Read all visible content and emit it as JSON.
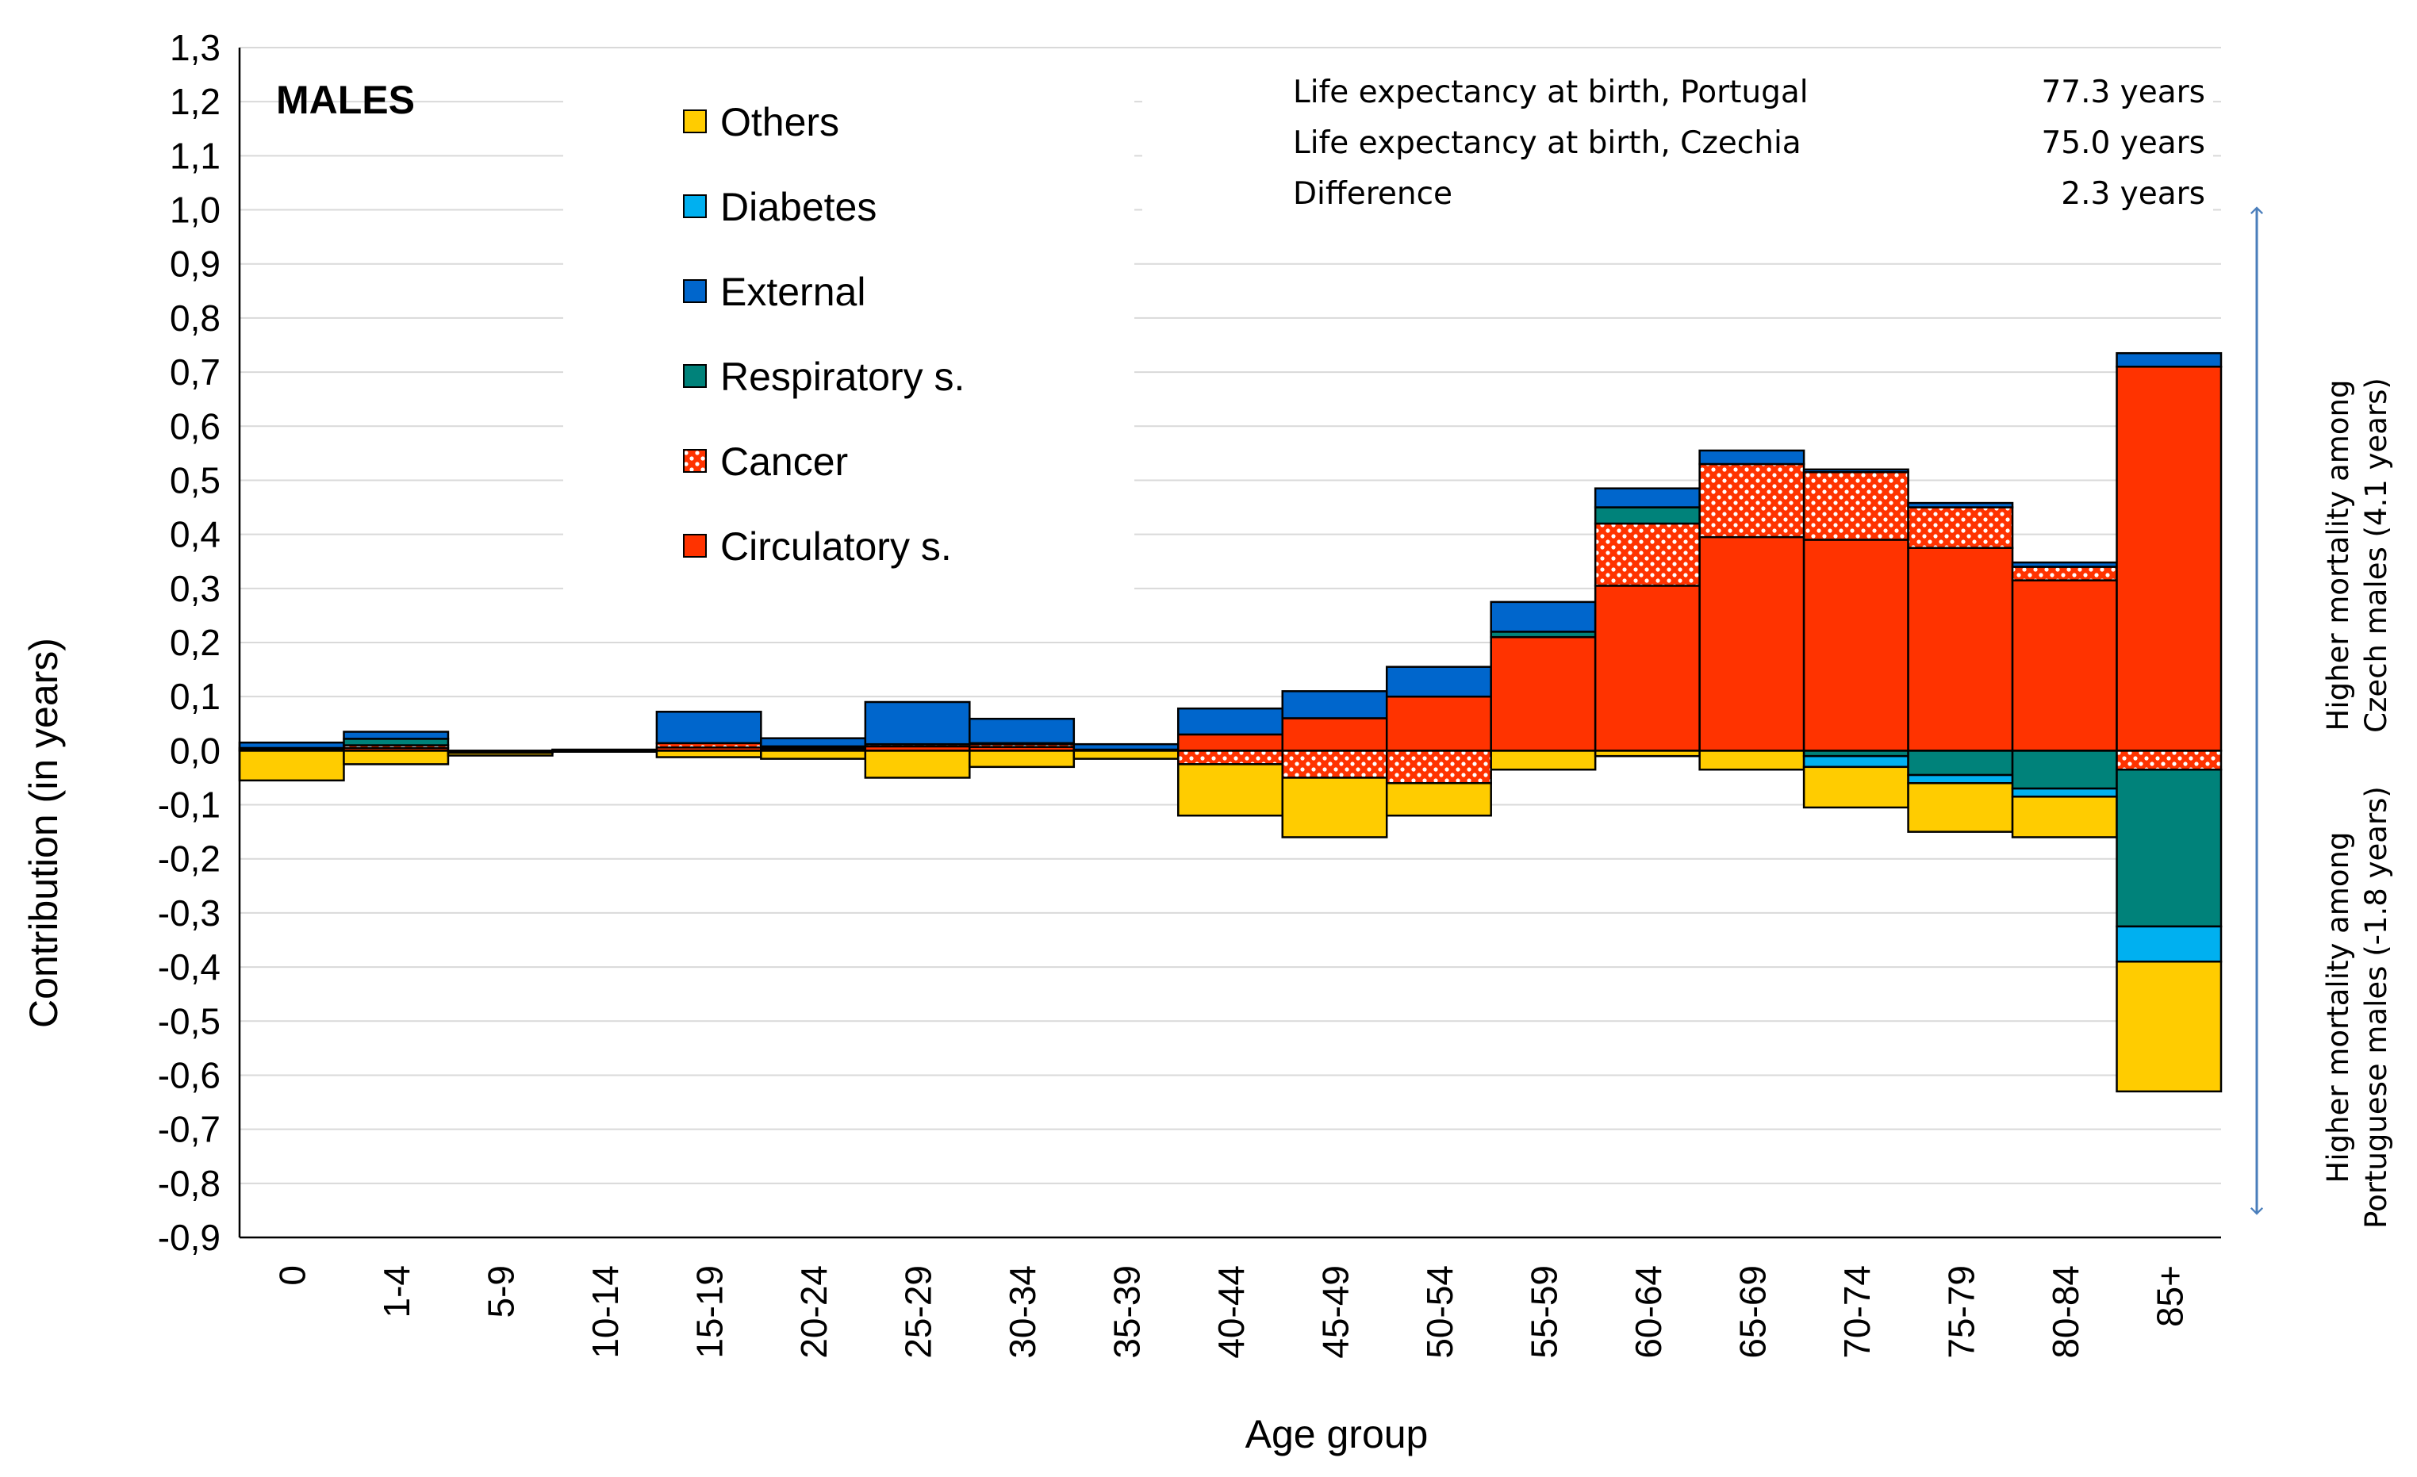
{
  "chart_data": {
    "type": "bar",
    "stacked": true,
    "panel_label": "MALES",
    "xlabel": "Age group",
    "ylabel": "Contribution (in years)",
    "ylim": [
      -0.9,
      1.3
    ],
    "ytick_labels": [
      "1,3",
      "1,2",
      "1,1",
      "1,0",
      "0,9",
      "0,8",
      "0,7",
      "0,6",
      "0,5",
      "0,4",
      "0,3",
      "0,2",
      "0,1",
      "0,0",
      "-0,1",
      "-0,2",
      "-0,3",
      "-0,4",
      "-0,5",
      "-0,6",
      "-0,7",
      "-0,8",
      "-0,9"
    ],
    "grid": true,
    "legend_position": "top-center",
    "categories": [
      "0",
      "1-4",
      "5-9",
      "10-14",
      "15-19",
      "20-24",
      "25-29",
      "30-34",
      "35-39",
      "40-44",
      "45-49",
      "50-54",
      "55-59",
      "60-64",
      "65-69",
      "70-74",
      "75-79",
      "80-84",
      "85+"
    ],
    "series": [
      {
        "name": "Circulatory s.",
        "color": "#FF3300",
        "pattern": "solid",
        "values": [
          0.002,
          0.005,
          -0.002,
          0.001,
          0.006,
          0.004,
          0.008,
          0.007,
          0.002,
          0.03,
          0.06,
          0.1,
          0.21,
          0.305,
          0.395,
          0.39,
          0.375,
          0.315,
          0.71
        ]
      },
      {
        "name": "Cancer",
        "color": "#FF3300",
        "pattern": "dots",
        "values": [
          0.0,
          0.005,
          -0.001,
          0.001,
          0.008,
          0.002,
          0.004,
          0.005,
          0.0,
          -0.025,
          -0.05,
          -0.06,
          0.0,
          0.115,
          0.135,
          0.125,
          0.075,
          0.025,
          -0.035
        ]
      },
      {
        "name": "Respiratory s.",
        "color": "#00827A",
        "pattern": "solid",
        "values": [
          0.003,
          0.012,
          -0.001,
          0.0,
          0.0,
          0.002,
          0.0,
          0.002,
          0.0,
          0.0,
          0.0,
          0.0,
          0.01,
          0.03,
          0.0,
          -0.01,
          -0.045,
          -0.07,
          -0.29
        ]
      },
      {
        "name": "External",
        "color": "#0066CC",
        "pattern": "solid",
        "values": [
          0.01,
          0.013,
          0.0,
          0.0,
          0.058,
          0.015,
          0.078,
          0.045,
          0.01,
          0.048,
          0.05,
          0.055,
          0.055,
          0.035,
          0.025,
          0.005,
          0.008,
          0.008,
          0.025
        ]
      },
      {
        "name": "Diabetes",
        "color": "#00B0F0",
        "pattern": "solid",
        "values": [
          0.0,
          0.0,
          0.0,
          0.0,
          0.0,
          0.0,
          0.0,
          0.0,
          0.0,
          0.0,
          0.0,
          0.0,
          0.0,
          0.0,
          0.0,
          -0.02,
          -0.015,
          -0.015,
          -0.065
        ]
      },
      {
        "name": "Others",
        "color": "#FFCC00",
        "pattern": "solid",
        "values": [
          -0.055,
          -0.025,
          -0.005,
          -0.002,
          -0.012,
          -0.015,
          -0.05,
          -0.03,
          -0.015,
          -0.095,
          -0.11,
          -0.06,
          -0.035,
          -0.01,
          -0.035,
          -0.075,
          -0.09,
          -0.075,
          -0.24
        ]
      }
    ],
    "legend_order": [
      "Others",
      "Diabetes",
      "External",
      "Respiratory s.",
      "Cancer",
      "Circulatory s."
    ],
    "info_box": [
      {
        "label": "Life expectancy at birth, Portugal",
        "value": "77.3 years"
      },
      {
        "label": "Life expectancy at birth, Czechia",
        "value": "75.0 years"
      },
      {
        "label": "Difference",
        "value": "2.3  years"
      }
    ],
    "annotation_upper": {
      "line1": "Higher mortality among",
      "line2": "Czech males (4.1 years)"
    },
    "annotation_lower": {
      "line1": "Higher mortality among",
      "line2": "Portuguese males (-1.8 years)"
    }
  }
}
